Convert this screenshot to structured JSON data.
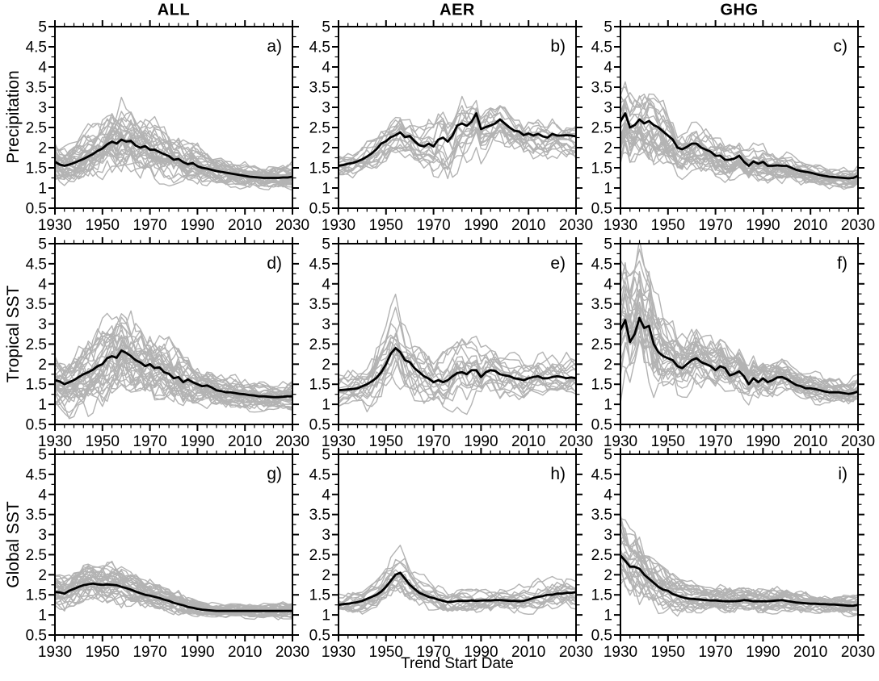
{
  "figure": {
    "col_titles": [
      "ALL",
      "AER",
      "GHG"
    ],
    "row_labels": [
      "Precipitation",
      "Tropical SST",
      "Global SST"
    ],
    "xlabel": "Trend Start Date",
    "colors": {
      "mean": "#000000",
      "ensemble": "#b3b3b3",
      "frame": "#000000",
      "background": "#ffffff"
    },
    "axes": {
      "xlim": [
        1930,
        2030
      ],
      "ylim": [
        0.5,
        5
      ],
      "x_ticks_major": [
        1930,
        1950,
        1970,
        1990,
        2010,
        2030
      ],
      "x_tick_minor_step": 4,
      "y_ticks_major": [
        0.5,
        1,
        1.5,
        2,
        2.5,
        3,
        3.5,
        4,
        4.5,
        5
      ],
      "y_tick_minor_step": 0.25,
      "x_step": 2,
      "grid": false,
      "legend": "none"
    }
  },
  "chart_data": [
    {
      "id": "a",
      "letter": "a)",
      "type": "line",
      "column": "ALL",
      "row": "Precipitation",
      "x_start": 1930,
      "x_end": 2030,
      "x_step": 2,
      "mean": [
        1.65,
        1.58,
        1.55,
        1.58,
        1.62,
        1.67,
        1.72,
        1.78,
        1.84,
        1.92,
        1.98,
        2.08,
        2.15,
        2.1,
        2.2,
        2.15,
        2.17,
        2.05,
        2.0,
        2.04,
        1.95,
        1.95,
        1.89,
        1.84,
        1.79,
        1.7,
        1.72,
        1.64,
        1.59,
        1.62,
        1.54,
        1.5,
        1.48,
        1.45,
        1.42,
        1.4,
        1.38,
        1.36,
        1.34,
        1.32,
        1.3,
        1.28,
        1.27,
        1.26,
        1.25,
        1.25,
        1.25,
        1.25,
        1.26,
        1.26,
        1.28
      ],
      "ensemble": {
        "n_members": 35,
        "spread_points": [
          [
            1930,
            0.45
          ],
          [
            1940,
            0.5
          ],
          [
            1950,
            0.65
          ],
          [
            1958,
            0.8
          ],
          [
            1965,
            0.7
          ],
          [
            1975,
            0.6
          ],
          [
            1985,
            0.5
          ],
          [
            1995,
            0.4
          ],
          [
            2005,
            0.3
          ],
          [
            2015,
            0.27
          ],
          [
            2030,
            0.28
          ]
        ]
      }
    },
    {
      "id": "b",
      "letter": "b)",
      "type": "line",
      "column": "AER",
      "row": "Precipitation",
      "x_start": 1930,
      "x_end": 2030,
      "x_step": 2,
      "mean": [
        1.55,
        1.57,
        1.6,
        1.62,
        1.66,
        1.71,
        1.78,
        1.86,
        1.96,
        2.1,
        2.16,
        2.26,
        2.31,
        2.38,
        2.26,
        2.29,
        2.16,
        2.06,
        2.03,
        2.1,
        2.03,
        2.2,
        2.25,
        2.15,
        2.3,
        2.55,
        2.6,
        2.54,
        2.64,
        2.85,
        2.46,
        2.51,
        2.55,
        2.6,
        2.7,
        2.6,
        2.5,
        2.42,
        2.4,
        2.31,
        2.35,
        2.3,
        2.34,
        2.28,
        2.25,
        2.34,
        2.3,
        2.3,
        2.31,
        2.3,
        2.28
      ],
      "ensemble": {
        "n_members": 18,
        "spread_points": [
          [
            1930,
            0.25
          ],
          [
            1940,
            0.35
          ],
          [
            1950,
            0.5
          ],
          [
            1958,
            0.45
          ],
          [
            1965,
            0.5
          ],
          [
            1972,
            0.7
          ],
          [
            1978,
            0.85
          ],
          [
            1985,
            0.75
          ],
          [
            1990,
            0.6
          ],
          [
            2000,
            0.5
          ],
          [
            2010,
            0.45
          ],
          [
            2020,
            0.45
          ],
          [
            2030,
            0.4
          ]
        ]
      }
    },
    {
      "id": "c",
      "letter": "c)",
      "type": "line",
      "column": "GHG",
      "row": "Precipitation",
      "x_start": 1930,
      "x_end": 2030,
      "x_step": 2,
      "mean": [
        2.65,
        2.85,
        2.5,
        2.56,
        2.7,
        2.6,
        2.66,
        2.56,
        2.5,
        2.4,
        2.3,
        2.2,
        2.0,
        1.96,
        2.02,
        2.1,
        2.1,
        2.0,
        1.95,
        1.9,
        1.8,
        1.8,
        1.7,
        1.7,
        1.73,
        1.8,
        1.65,
        1.55,
        1.66,
        1.6,
        1.65,
        1.55,
        1.55,
        1.56,
        1.55,
        1.55,
        1.5,
        1.45,
        1.42,
        1.4,
        1.38,
        1.35,
        1.32,
        1.3,
        1.28,
        1.27,
        1.26,
        1.25,
        1.24,
        1.25,
        1.3
      ],
      "ensemble": {
        "n_members": 28,
        "spread_points": [
          [
            1930,
            1.0
          ],
          [
            1938,
            1.0
          ],
          [
            1945,
            0.8
          ],
          [
            1952,
            0.65
          ],
          [
            1960,
            0.55
          ],
          [
            1970,
            0.5
          ],
          [
            1980,
            0.4
          ],
          [
            1990,
            0.35
          ],
          [
            2000,
            0.3
          ],
          [
            2010,
            0.27
          ],
          [
            2020,
            0.23
          ],
          [
            2030,
            0.25
          ]
        ]
      }
    },
    {
      "id": "d",
      "letter": "d)",
      "type": "line",
      "column": "ALL",
      "row": "Tropical SST",
      "x_start": 1930,
      "x_end": 2030,
      "x_step": 2,
      "mean": [
        1.6,
        1.57,
        1.5,
        1.55,
        1.6,
        1.68,
        1.75,
        1.8,
        1.86,
        1.95,
        2.0,
        2.15,
        2.2,
        2.16,
        2.34,
        2.28,
        2.2,
        2.1,
        2.04,
        1.95,
        2.0,
        1.9,
        1.92,
        1.8,
        1.76,
        1.65,
        1.68,
        1.55,
        1.62,
        1.55,
        1.5,
        1.45,
        1.47,
        1.42,
        1.35,
        1.33,
        1.3,
        1.3,
        1.28,
        1.26,
        1.25,
        1.23,
        1.22,
        1.2,
        1.2,
        1.19,
        1.18,
        1.18,
        1.19,
        1.2,
        1.2
      ],
      "ensemble": {
        "n_members": 35,
        "spread_points": [
          [
            1930,
            0.6
          ],
          [
            1940,
            0.7
          ],
          [
            1948,
            0.85
          ],
          [
            1955,
            1.0
          ],
          [
            1962,
            0.9
          ],
          [
            1970,
            0.75
          ],
          [
            1978,
            0.7
          ],
          [
            1985,
            0.6
          ],
          [
            1990,
            0.5
          ],
          [
            2000,
            0.35
          ],
          [
            2010,
            0.3
          ],
          [
            2020,
            0.28
          ],
          [
            2030,
            0.3
          ]
        ]
      }
    },
    {
      "id": "e",
      "letter": "e)",
      "type": "line",
      "column": "AER",
      "row": "Tropical SST",
      "x_start": 1930,
      "x_end": 2030,
      "x_step": 2,
      "mean": [
        1.35,
        1.36,
        1.37,
        1.38,
        1.4,
        1.45,
        1.5,
        1.57,
        1.66,
        1.8,
        2.0,
        2.26,
        2.4,
        2.3,
        2.1,
        2.05,
        1.9,
        1.8,
        1.7,
        1.64,
        1.55,
        1.6,
        1.55,
        1.6,
        1.7,
        1.78,
        1.8,
        1.75,
        1.85,
        1.85,
        1.68,
        1.8,
        1.85,
        1.83,
        1.75,
        1.72,
        1.7,
        1.65,
        1.63,
        1.6,
        1.65,
        1.68,
        1.7,
        1.65,
        1.65,
        1.68,
        1.7,
        1.68,
        1.65,
        1.67,
        1.65
      ],
      "ensemble": {
        "n_members": 18,
        "spread_points": [
          [
            1930,
            0.35
          ],
          [
            1940,
            0.5
          ],
          [
            1948,
            0.8
          ],
          [
            1954,
            1.0
          ],
          [
            1960,
            0.7
          ],
          [
            1968,
            0.65
          ],
          [
            1975,
            0.75
          ],
          [
            1982,
            0.8
          ],
          [
            1990,
            0.65
          ],
          [
            2000,
            0.55
          ],
          [
            2010,
            0.5
          ],
          [
            2018,
            0.55
          ],
          [
            2030,
            0.45
          ]
        ]
      }
    },
    {
      "id": "f",
      "letter": "f)",
      "type": "line",
      "column": "GHG",
      "row": "Tropical SST",
      "x_start": 1930,
      "x_end": 2030,
      "x_step": 2,
      "mean": [
        2.85,
        3.1,
        2.55,
        2.75,
        3.15,
        2.9,
        2.95,
        2.5,
        2.3,
        2.2,
        2.15,
        2.1,
        1.95,
        1.9,
        2.0,
        2.1,
        2.15,
        2.05,
        2.0,
        1.95,
        1.85,
        1.95,
        1.9,
        1.72,
        1.76,
        1.82,
        1.7,
        1.5,
        1.65,
        1.55,
        1.65,
        1.55,
        1.6,
        1.67,
        1.68,
        1.63,
        1.55,
        1.48,
        1.45,
        1.4,
        1.4,
        1.38,
        1.35,
        1.32,
        1.3,
        1.3,
        1.3,
        1.28,
        1.26,
        1.28,
        1.32
      ],
      "ensemble": {
        "n_members": 28,
        "spread_points": [
          [
            1930,
            1.6
          ],
          [
            1936,
            1.7
          ],
          [
            1942,
            1.5
          ],
          [
            1948,
            0.95
          ],
          [
            1955,
            0.8
          ],
          [
            1962,
            0.7
          ],
          [
            1970,
            0.6
          ],
          [
            1980,
            0.55
          ],
          [
            1990,
            0.45
          ],
          [
            2000,
            0.4
          ],
          [
            2010,
            0.35
          ],
          [
            2020,
            0.3
          ],
          [
            2030,
            0.33
          ]
        ]
      }
    },
    {
      "id": "g",
      "letter": "g)",
      "type": "line",
      "column": "ALL",
      "row": "Global SST",
      "x_start": 1930,
      "x_end": 2030,
      "x_step": 2,
      "mean": [
        1.57,
        1.56,
        1.53,
        1.6,
        1.65,
        1.7,
        1.74,
        1.76,
        1.78,
        1.76,
        1.75,
        1.76,
        1.75,
        1.74,
        1.7,
        1.67,
        1.63,
        1.58,
        1.54,
        1.5,
        1.48,
        1.45,
        1.42,
        1.38,
        1.35,
        1.3,
        1.27,
        1.24,
        1.2,
        1.18,
        1.15,
        1.13,
        1.12,
        1.11,
        1.1,
        1.1,
        1.1,
        1.1,
        1.1,
        1.1,
        1.1,
        1.1,
        1.1,
        1.1,
        1.1,
        1.1,
        1.1,
        1.1,
        1.1,
        1.1,
        1.1
      ],
      "ensemble": {
        "n_members": 35,
        "spread_points": [
          [
            1930,
            0.35
          ],
          [
            1938,
            0.45
          ],
          [
            1946,
            0.45
          ],
          [
            1955,
            0.45
          ],
          [
            1962,
            0.4
          ],
          [
            1970,
            0.32
          ],
          [
            1980,
            0.28
          ],
          [
            1990,
            0.2
          ],
          [
            2000,
            0.16
          ],
          [
            2015,
            0.16
          ],
          [
            2030,
            0.18
          ]
        ]
      }
    },
    {
      "id": "h",
      "letter": "h)",
      "type": "line",
      "column": "AER",
      "row": "Global SST",
      "x_start": 1930,
      "x_end": 2030,
      "x_step": 2,
      "mean": [
        1.25,
        1.27,
        1.28,
        1.3,
        1.32,
        1.35,
        1.4,
        1.45,
        1.5,
        1.58,
        1.7,
        1.85,
        2.0,
        2.05,
        1.9,
        1.75,
        1.65,
        1.55,
        1.5,
        1.45,
        1.42,
        1.38,
        1.35,
        1.32,
        1.33,
        1.35,
        1.35,
        1.35,
        1.36,
        1.35,
        1.36,
        1.36,
        1.36,
        1.37,
        1.37,
        1.36,
        1.35,
        1.35,
        1.34,
        1.35,
        1.38,
        1.42,
        1.45,
        1.47,
        1.5,
        1.5,
        1.53,
        1.53,
        1.55,
        1.55,
        1.57
      ],
      "ensemble": {
        "n_members": 18,
        "spread_points": [
          [
            1930,
            0.22
          ],
          [
            1940,
            0.3
          ],
          [
            1948,
            0.4
          ],
          [
            1955,
            0.6
          ],
          [
            1962,
            0.5
          ],
          [
            1970,
            0.35
          ],
          [
            1980,
            0.28
          ],
          [
            1990,
            0.28
          ],
          [
            2000,
            0.28
          ],
          [
            2010,
            0.3
          ],
          [
            2020,
            0.35
          ],
          [
            2030,
            0.35
          ]
        ]
      }
    },
    {
      "id": "i",
      "letter": "i)",
      "type": "line",
      "column": "GHG",
      "row": "Global SST",
      "x_start": 1930,
      "x_end": 2030,
      "x_step": 2,
      "mean": [
        2.48,
        2.35,
        2.2,
        2.2,
        2.15,
        2.0,
        1.9,
        1.8,
        1.7,
        1.63,
        1.6,
        1.52,
        1.48,
        1.44,
        1.41,
        1.4,
        1.39,
        1.38,
        1.37,
        1.36,
        1.36,
        1.35,
        1.34,
        1.34,
        1.34,
        1.35,
        1.37,
        1.36,
        1.34,
        1.34,
        1.34,
        1.34,
        1.35,
        1.36,
        1.37,
        1.35,
        1.33,
        1.31,
        1.3,
        1.29,
        1.28,
        1.28,
        1.27,
        1.27,
        1.26,
        1.26,
        1.25,
        1.24,
        1.23,
        1.23,
        1.25
      ],
      "ensemble": {
        "n_members": 28,
        "spread_points": [
          [
            1930,
            0.85
          ],
          [
            1936,
            0.9
          ],
          [
            1942,
            0.7
          ],
          [
            1950,
            0.45
          ],
          [
            1958,
            0.35
          ],
          [
            1965,
            0.3
          ],
          [
            1975,
            0.3
          ],
          [
            1985,
            0.3
          ],
          [
            1995,
            0.27
          ],
          [
            2005,
            0.24
          ],
          [
            2015,
            0.22
          ],
          [
            2030,
            0.2
          ]
        ]
      }
    }
  ]
}
